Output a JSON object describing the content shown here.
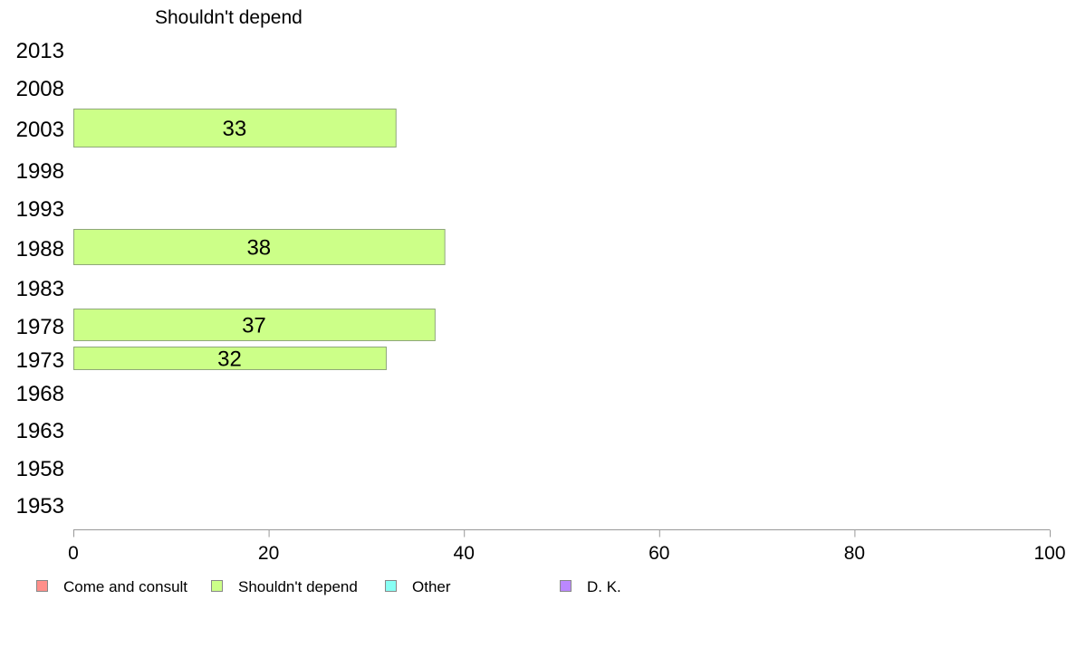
{
  "chart_data": {
    "type": "bar",
    "orientation": "horizontal",
    "title": "Shouldn't depend",
    "categories": [
      "2013",
      "2008",
      "2003",
      "1998",
      "1993",
      "1988",
      "1983",
      "1978",
      "1973",
      "1968",
      "1963",
      "1958",
      "1953"
    ],
    "series": [
      {
        "name": "Shouldn't depend",
        "color": "#ccff88",
        "values": [
          null,
          null,
          33,
          null,
          null,
          38,
          null,
          37,
          32,
          null,
          null,
          null,
          null
        ]
      }
    ],
    "data_labels": [
      null,
      null,
      "33",
      null,
      null,
      "38",
      null,
      "37",
      "32",
      null,
      null,
      null,
      null
    ],
    "xlim": [
      0,
      100
    ],
    "xticks": [
      "0",
      "20",
      "40",
      "60",
      "80",
      "100"
    ],
    "legend_position": "bottom",
    "legend": [
      {
        "name": "Come and consult",
        "color": "#ff8f8a"
      },
      {
        "name": "Shouldn't depend",
        "color": "#ccff88"
      },
      {
        "name": "Other",
        "color": "#88fff4"
      },
      {
        "name": "D. K.",
        "color": "#bb88ff"
      }
    ]
  }
}
